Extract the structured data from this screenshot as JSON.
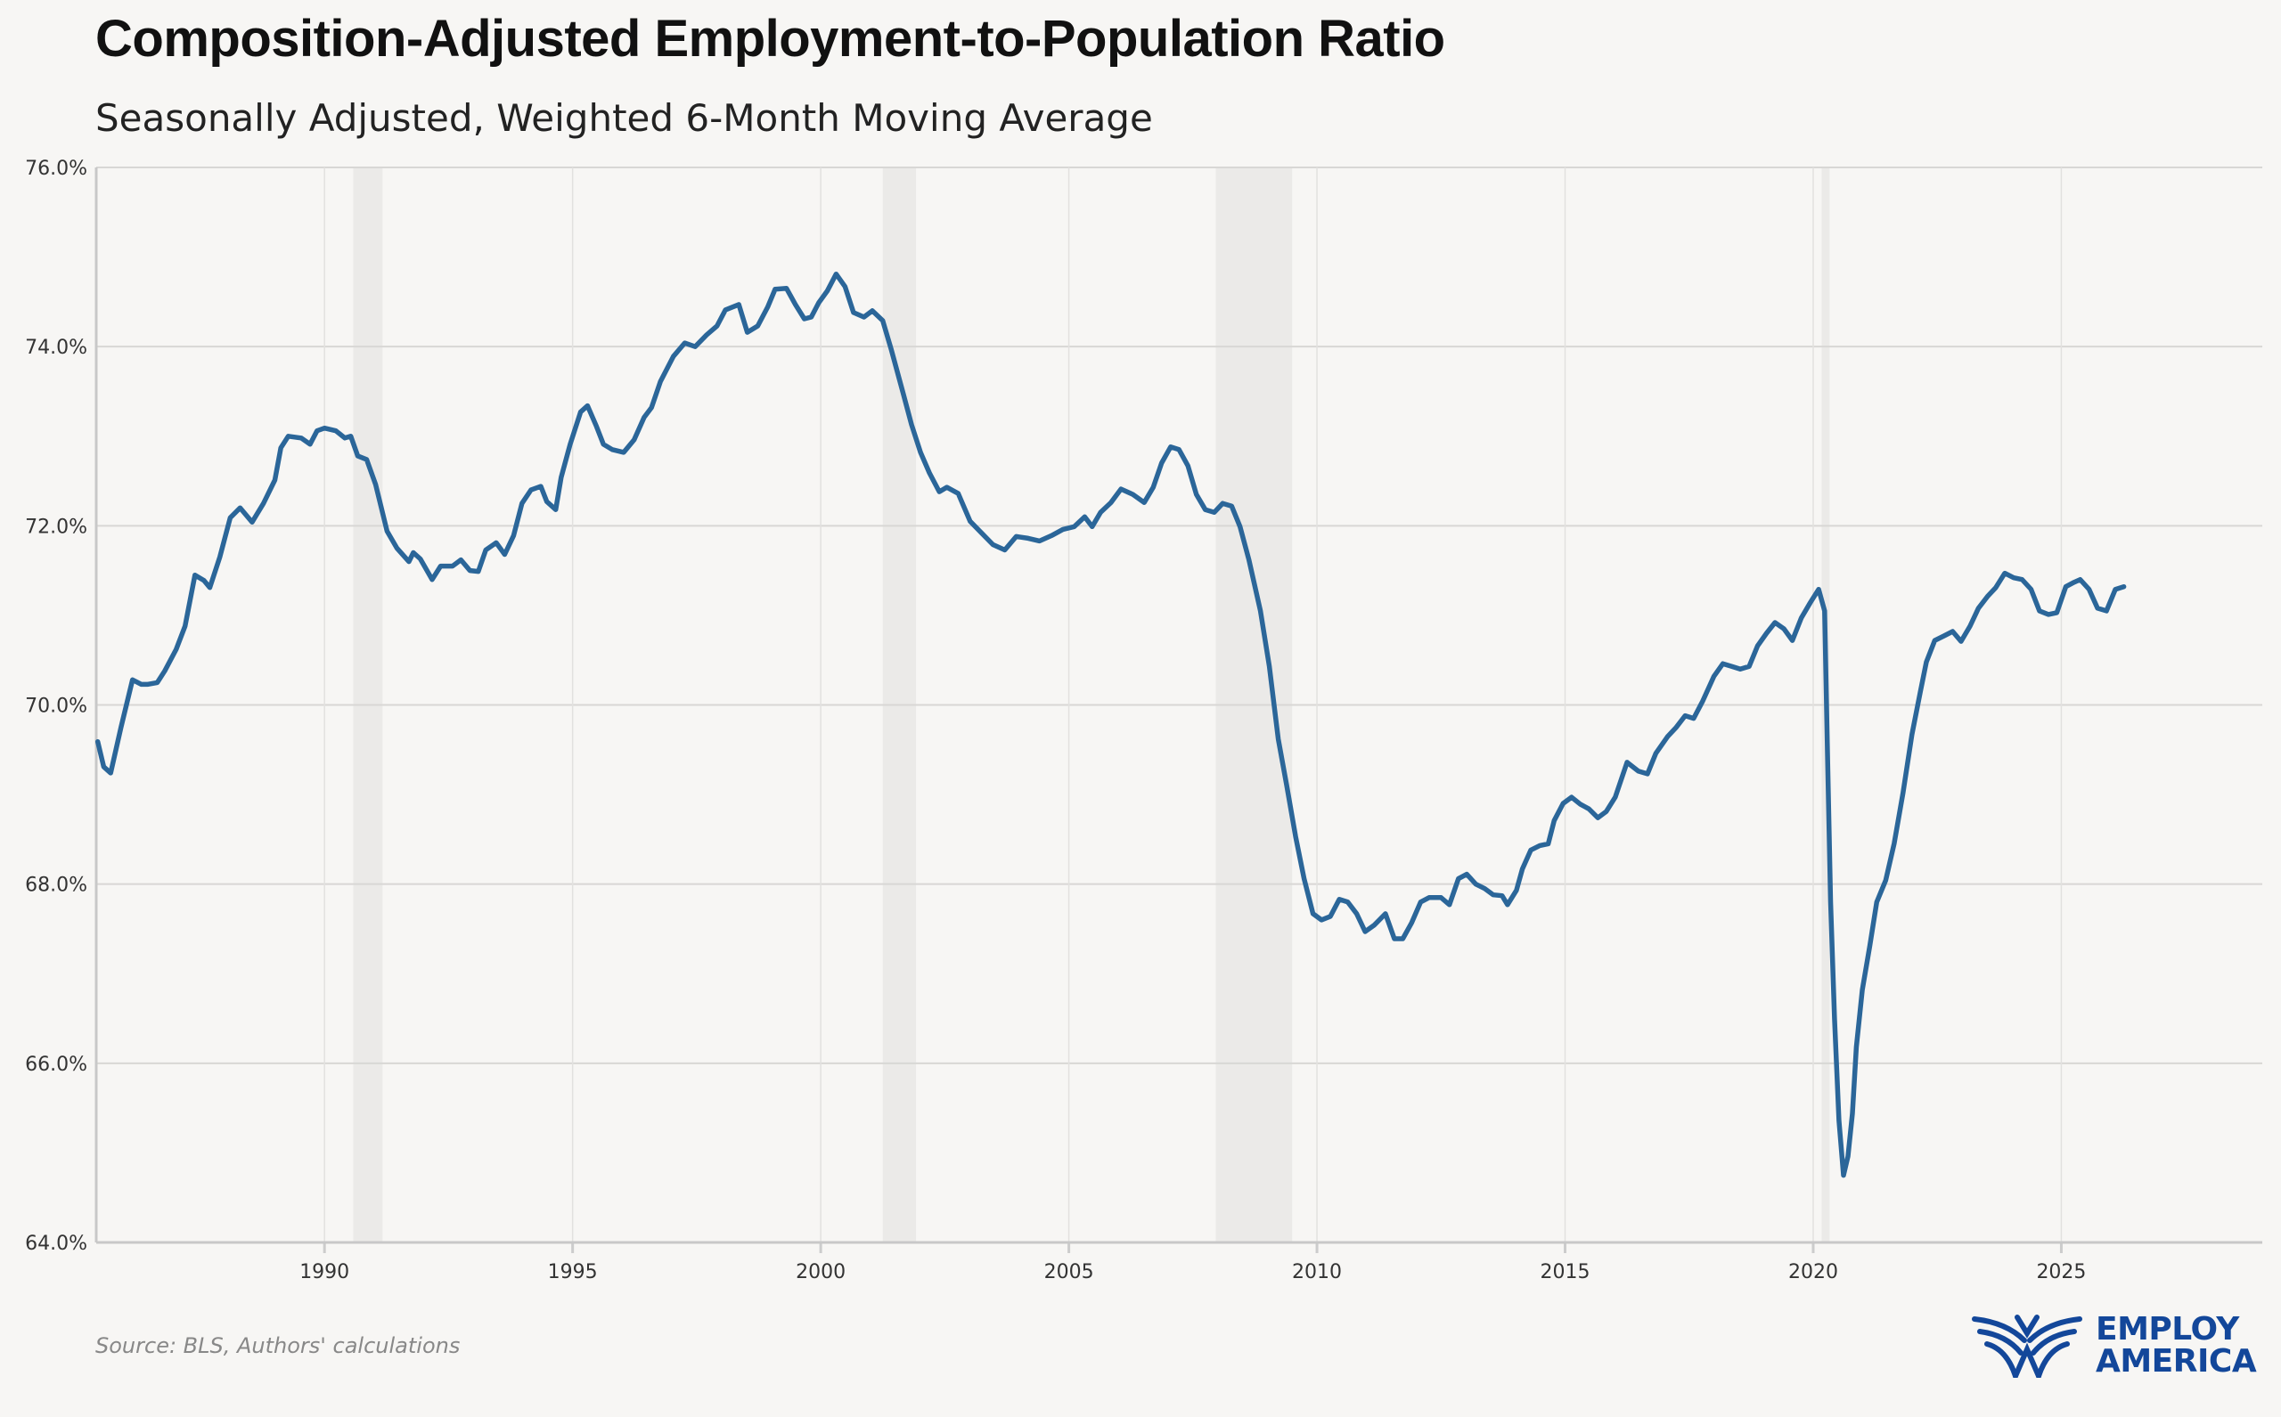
{
  "header": {
    "title": "Composition-Adjusted Employment-to-Population Ratio",
    "subtitle": "Seasonally Adjusted, Weighted 6-Month Moving Average"
  },
  "footer": {
    "source": "Source: BLS, Authors' calculations",
    "logo_line1": "EMPLOY",
    "logo_line2": "AMERICA",
    "logo_color": "#13479a"
  },
  "chart_data": {
    "type": "line",
    "title": "Composition-Adjusted Employment-to-Population Ratio",
    "subtitle": "Seasonally Adjusted, Weighted 6-Month Moving Average",
    "xlabel": "",
    "ylabel": "",
    "xlim": [
      1985.4,
      2029.05
    ],
    "ylim": [
      64,
      76
    ],
    "x_ticks": [
      1990,
      1995,
      2000,
      2005,
      2010,
      2015,
      2020,
      2025
    ],
    "x_tick_labels": [
      "1990",
      "1995",
      "2000",
      "2005",
      "2010",
      "2015",
      "2020",
      "2025"
    ],
    "y_ticks": [
      64,
      66,
      68,
      70,
      72,
      74,
      76
    ],
    "y_tick_labels": [
      "64.0%",
      "66.0%",
      "68.0%",
      "70.0%",
      "72.0%",
      "74.0%",
      "76.0%"
    ],
    "grid": true,
    "legend": "none",
    "line_color": "#2b6699",
    "shaded_periods": [
      [
        1990.58,
        1991.17
      ],
      [
        2001.25,
        2001.92
      ],
      [
        2007.96,
        2009.5
      ],
      [
        2020.17,
        2020.33
      ]
    ],
    "series": [
      {
        "x": [
          1985.43,
          1985.55,
          1985.69,
          1985.9,
          1986.13,
          1986.31,
          1986.43,
          1986.63,
          1986.78,
          1987.01,
          1987.19,
          1987.39,
          1987.57,
          1987.69,
          1987.89,
          1988.1,
          1988.3,
          1988.54,
          1988.77,
          1989.0,
          1989.12,
          1989.27,
          1989.53,
          1989.71,
          1989.85,
          1990.0,
          1990.23,
          1990.41,
          1990.53,
          1990.67,
          1990.85,
          1991.03,
          1991.26,
          1991.46,
          1991.7,
          1991.79,
          1991.93,
          1992.17,
          1992.34,
          1992.58,
          1992.75,
          1992.93,
          1993.1,
          1993.25,
          1993.46,
          1993.63,
          1993.81,
          1993.98,
          1994.16,
          1994.36,
          1994.48,
          1994.66,
          1994.77,
          1994.95,
          1995.16,
          1995.3,
          1995.48,
          1995.62,
          1995.8,
          1996.03,
          1996.24,
          1996.44,
          1996.59,
          1996.77,
          1997.03,
          1997.26,
          1997.47,
          1997.7,
          1997.91,
          1998.08,
          1998.35,
          1998.52,
          1998.73,
          1998.93,
          1999.08,
          1999.31,
          1999.49,
          1999.67,
          1999.81,
          1999.96,
          2000.13,
          2000.31,
          2000.49,
          2000.66,
          2000.87,
          2001.04,
          2001.25,
          2001.42,
          2001.66,
          2001.83,
          2002.01,
          2002.19,
          2002.39,
          2002.54,
          2002.77,
          2003.01,
          2003.24,
          2003.47,
          2003.71,
          2003.94,
          2004.18,
          2004.41,
          2004.65,
          2004.88,
          2005.11,
          2005.32,
          2005.47,
          2005.64,
          2005.85,
          2006.05,
          2006.29,
          2006.52,
          2006.7,
          2006.87,
          2007.05,
          2007.22,
          2007.4,
          2007.57,
          2007.75,
          2007.93,
          2008.1,
          2008.28,
          2008.45,
          2008.63,
          2008.86,
          2009.04,
          2009.22,
          2009.39,
          2009.57,
          2009.74,
          2009.92,
          2010.09,
          2010.27,
          2010.45,
          2010.62,
          2010.8,
          2010.97,
          2011.15,
          2011.38,
          2011.56,
          2011.73,
          2011.91,
          2012.09,
          2012.26,
          2012.5,
          2012.67,
          2012.85,
          2013.02,
          2013.2,
          2013.38,
          2013.55,
          2013.73,
          2013.84,
          2014.02,
          2014.14,
          2014.31,
          2014.49,
          2014.66,
          2014.78,
          2014.96,
          2015.13,
          2015.31,
          2015.48,
          2015.66,
          2015.83,
          2016.01,
          2016.25,
          2016.48,
          2016.66,
          2016.83,
          2017.07,
          2017.24,
          2017.42,
          2017.59,
          2017.77,
          2018.0,
          2018.18,
          2018.36,
          2018.53,
          2018.71,
          2018.88,
          2019.06,
          2019.23,
          2019.41,
          2019.58,
          2019.76,
          2019.94,
          2020.11,
          2020.23,
          2020.29,
          2020.35,
          2020.43,
          2020.52,
          2020.61,
          2020.7,
          2020.79,
          2020.87,
          2020.99,
          2021.14,
          2021.28,
          2021.46,
          2021.63,
          2021.81,
          2021.99,
          2022.16,
          2022.28,
          2022.45,
          2022.63,
          2022.81,
          2022.98,
          2023.16,
          2023.33,
          2023.51,
          2023.68,
          2023.86,
          2024.04,
          2024.21,
          2024.39,
          2024.56,
          2024.74,
          2024.91,
          2025.09,
          2025.26,
          2025.38,
          2025.56,
          2025.73,
          2025.91,
          2026.09,
          2026.26
        ],
        "y": [
          69.59,
          69.31,
          69.24,
          69.75,
          70.28,
          70.23,
          70.23,
          70.25,
          70.38,
          70.62,
          70.88,
          71.45,
          71.39,
          71.31,
          71.65,
          72.09,
          72.2,
          72.04,
          72.25,
          72.51,
          72.87,
          73.0,
          72.98,
          72.91,
          73.06,
          73.09,
          73.06,
          72.98,
          73.0,
          72.78,
          72.74,
          72.46,
          71.94,
          71.75,
          71.6,
          71.7,
          71.63,
          71.4,
          71.55,
          71.55,
          71.62,
          71.5,
          71.49,
          71.73,
          71.81,
          71.68,
          71.89,
          72.25,
          72.4,
          72.44,
          72.27,
          72.18,
          72.54,
          72.91,
          73.27,
          73.34,
          73.11,
          72.91,
          72.85,
          72.82,
          72.96,
          73.21,
          73.32,
          73.61,
          73.89,
          74.04,
          74.0,
          74.13,
          74.23,
          74.41,
          74.47,
          74.16,
          74.23,
          74.44,
          74.64,
          74.65,
          74.47,
          74.31,
          74.33,
          74.49,
          74.62,
          74.81,
          74.67,
          74.38,
          74.33,
          74.4,
          74.29,
          73.97,
          73.48,
          73.13,
          72.82,
          72.59,
          72.38,
          72.43,
          72.36,
          72.05,
          71.92,
          71.79,
          71.73,
          71.88,
          71.86,
          71.83,
          71.89,
          71.96,
          71.99,
          72.1,
          71.99,
          72.15,
          72.26,
          72.41,
          72.35,
          72.26,
          72.43,
          72.7,
          72.88,
          72.85,
          72.67,
          72.35,
          72.18,
          72.15,
          72.25,
          72.22,
          71.99,
          71.62,
          71.05,
          70.43,
          69.62,
          69.1,
          68.53,
          68.06,
          67.67,
          67.6,
          67.64,
          67.83,
          67.8,
          67.67,
          67.47,
          67.54,
          67.67,
          67.39,
          67.39,
          67.57,
          67.8,
          67.85,
          67.85,
          67.77,
          68.06,
          68.11,
          68.0,
          67.95,
          67.88,
          67.87,
          67.77,
          67.93,
          68.17,
          68.38,
          68.43,
          68.45,
          68.71,
          68.9,
          68.97,
          68.89,
          68.84,
          68.74,
          68.81,
          68.97,
          69.36,
          69.26,
          69.23,
          69.46,
          69.65,
          69.75,
          69.88,
          69.85,
          70.04,
          70.32,
          70.46,
          70.43,
          70.4,
          70.43,
          70.66,
          70.8,
          70.92,
          70.85,
          70.72,
          70.97,
          71.14,
          71.29,
          71.05,
          69.42,
          67.8,
          66.5,
          65.36,
          64.75,
          64.96,
          65.44,
          66.18,
          66.82,
          67.31,
          67.8,
          68.04,
          68.45,
          69.02,
          69.67,
          70.15,
          70.48,
          70.72,
          70.77,
          70.82,
          70.71,
          70.88,
          71.08,
          71.21,
          71.31,
          71.47,
          71.42,
          71.4,
          71.29,
          71.05,
          71.01,
          71.03,
          71.32,
          71.37,
          71.4,
          71.29,
          71.08,
          71.05,
          71.29,
          71.32
        ]
      }
    ]
  }
}
